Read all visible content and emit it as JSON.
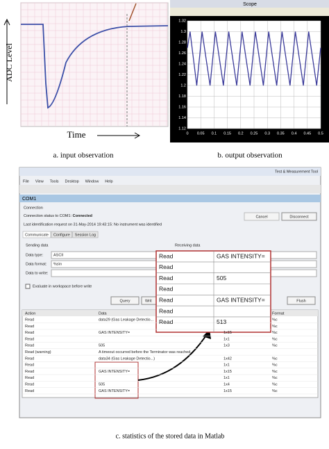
{
  "input_panel": {
    "y_label": "ADC Level",
    "x_label": "Time",
    "caption": "a. input observation"
  },
  "chart_data": {
    "type": "line",
    "window_title": "Scope",
    "caption": "b. output observation",
    "x": [
      0,
      0.01,
      0.035,
      0.055,
      0.085,
      0.105,
      0.135,
      0.155,
      0.185,
      0.205,
      0.235,
      0.255,
      0.285,
      0.305,
      0.335,
      0.355,
      0.385,
      0.405,
      0.435,
      0.455,
      0.485,
      0.5
    ],
    "series": [
      {
        "color": "#3a3a9a",
        "values": [
          1.27,
          1.3,
          1.2,
          1.3,
          1.2,
          1.3,
          1.2,
          1.3,
          1.2,
          1.3,
          1.2,
          1.3,
          1.2,
          1.3,
          1.2,
          1.3,
          1.2,
          1.3,
          1.2,
          1.3,
          1.2,
          1.27
        ]
      }
    ],
    "xlim": [
      0,
      0.5
    ],
    "ylim": [
      1.12,
      1.32
    ],
    "xticks": [
      0,
      0.05,
      0.1,
      0.15,
      0.2,
      0.25,
      0.3,
      0.35,
      0.4,
      0.45,
      0.5
    ],
    "yticks": [
      1.12,
      1.14,
      1.16,
      1.18,
      1.2,
      1.22,
      1.24,
      1.26,
      1.28,
      1.3,
      1.32
    ],
    "grid": true
  },
  "window": {
    "title": "Test & Measurement Tool",
    "menu": [
      "File",
      "View",
      "Tools",
      "Desktop",
      "Window",
      "Help"
    ],
    "node": "COM1",
    "connection_heading": "Connection",
    "status_prefix": "Connection status to COM1:",
    "status": "Connected",
    "last_request": "Last identification request on 31-May-2014 19:43:15: No instrument was identified",
    "cancel": "Cancel",
    "disconnect": "Disconnect",
    "tabs": [
      "Communicate",
      "Configure",
      "Session Log"
    ],
    "sending": "Sending data",
    "receiving": "Receiving data",
    "data_type_label": "Data type:",
    "data_type": "ASCII",
    "data_format_label": "Data format:",
    "data_format": "%s\\n",
    "data_to_write": "Data to write:",
    "evaluate": "Evaluate in workspace before write",
    "query": "Query",
    "write": "Writ",
    "flush": "Flush",
    "columns": {
      "action": "Action",
      "data": "Data",
      "format": "Format"
    },
    "rows": [
      {
        "action": "Read",
        "data": "data29 (Gas Leakage Detectio...",
        "format": "%c"
      },
      {
        "action": "Read",
        "format": "%c"
      },
      {
        "action": "Read",
        "data": "GAS INTENSITY=",
        "size": "1x15",
        "format": "%c"
      },
      {
        "action": "Read",
        "size": "1x1",
        "format": "%c"
      },
      {
        "action": "Read",
        "data": "505",
        "size": "1x3",
        "format": "%c"
      },
      {
        "action": "Read (warning)",
        "data": "A timeout occurred before the Terminator was reached."
      },
      {
        "action": "Read",
        "data": "data34 (Gas Leakage Detectio...)",
        "size": "1x42",
        "format": "%c"
      },
      {
        "action": "Read",
        "size": "1x1",
        "format": "%c"
      },
      {
        "action": "Read",
        "data": "GAS INTENSITY=",
        "size": "1x15",
        "format": "%c"
      },
      {
        "action": "Read",
        "size": "1x1",
        "format": "%c"
      },
      {
        "action": "Read",
        "data": "505",
        "size": "1x4",
        "format": "%c"
      },
      {
        "action": "Read",
        "data": "GAS INTENSITY=",
        "size": "1x15",
        "format": "%c"
      }
    ],
    "inset": [
      {
        "action": "Read",
        "data": "GAS INTENSITY="
      },
      {
        "action": "Read"
      },
      {
        "action": "Read",
        "data": "505"
      },
      {
        "action": "Read"
      },
      {
        "action": "Read",
        "data": "GAS INTENSITY="
      },
      {
        "action": "Read"
      },
      {
        "action": "Read",
        "data": "513"
      }
    ]
  },
  "caption_c": "c. statistics of the stored data in Matlab"
}
